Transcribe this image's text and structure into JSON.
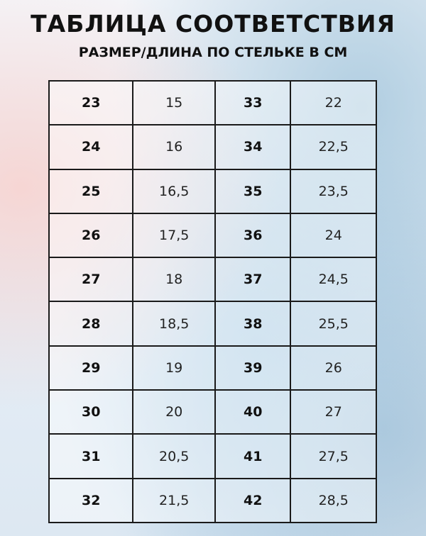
{
  "header": {
    "title": "ТАБЛИЦА СООТВЕТСТВИЯ",
    "subtitle": "РАЗМЕР/ДЛИНА ПО СТЕЛЬКЕ В СМ"
  },
  "table": {
    "rows": [
      [
        "23",
        "15",
        "33",
        "22"
      ],
      [
        "24",
        "16",
        "34",
        "22,5"
      ],
      [
        "25",
        "16,5",
        "35",
        "23,5"
      ],
      [
        "26",
        "17,5",
        "36",
        "24"
      ],
      [
        "27",
        "18",
        "37",
        "24,5"
      ],
      [
        "28",
        "18,5",
        "38",
        "25,5"
      ],
      [
        "29",
        "19",
        "39",
        "26"
      ],
      [
        "30",
        "20",
        "40",
        "27"
      ],
      [
        "31",
        "20,5",
        "41",
        "27,5"
      ],
      [
        "32",
        "21,5",
        "42",
        "28,5"
      ]
    ]
  }
}
